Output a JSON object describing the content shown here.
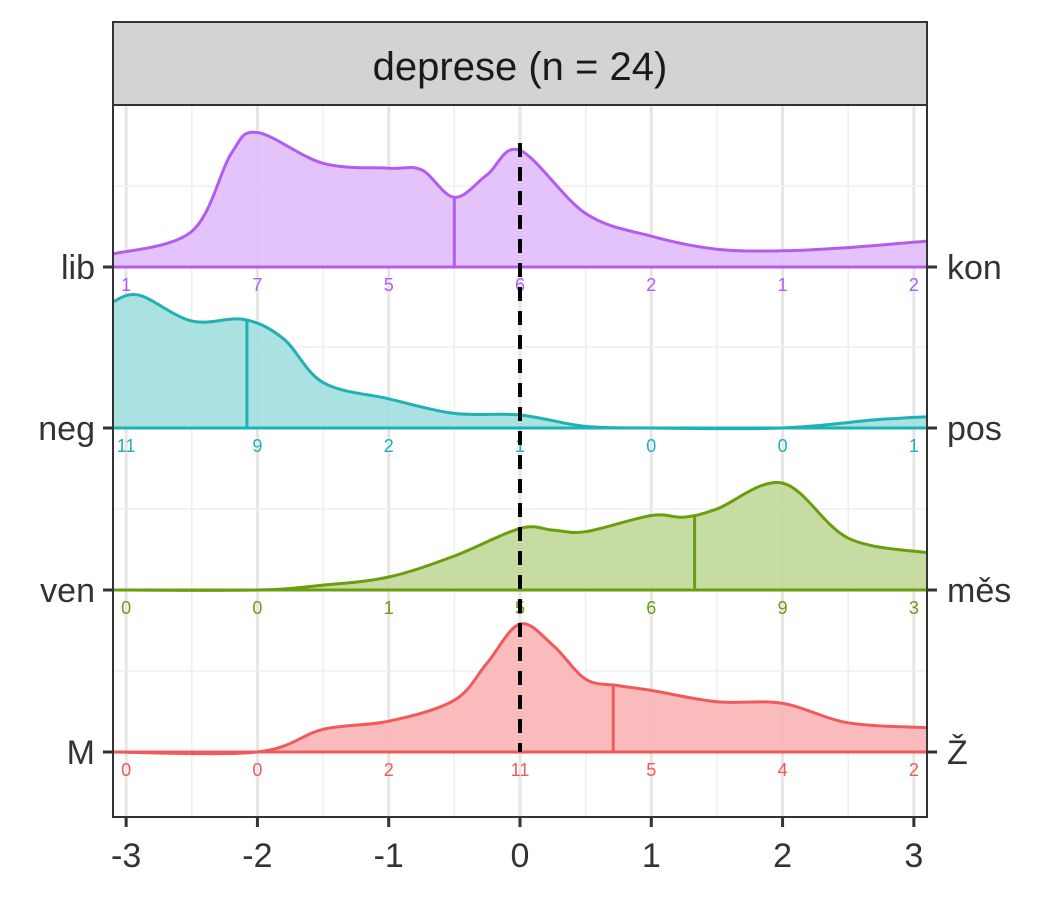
{
  "chart_data": {
    "type": "ridgeline-density",
    "title": "depRESE",
    "title_text": "deprese (n = 24)",
    "xlim": [
      -3.1,
      3.1
    ],
    "x_ticks": [
      -3,
      -2,
      -1,
      0,
      1,
      2,
      3
    ],
    "x_tick_labels": [
      "-3",
      "-2",
      "-1",
      "0",
      "1",
      "2",
      "3"
    ],
    "reference_line_x": 0,
    "grid": true,
    "count_positions": [
      -3,
      -2,
      -1,
      0,
      1,
      2,
      3
    ],
    "series": [
      {
        "left_label": "M",
        "right_label": "Ž",
        "color": "#F05A5A",
        "fill": "#F8B5B5",
        "mean": 0.71,
        "counts": [
          0,
          0,
          2,
          11,
          5,
          4,
          2
        ],
        "density": [
          [
            -3.1,
            0.0
          ],
          [
            -2.0,
            0.0
          ],
          [
            -1.5,
            0.14
          ],
          [
            -1.0,
            0.19
          ],
          [
            -0.5,
            0.32
          ],
          [
            -0.25,
            0.55
          ],
          [
            0.0,
            0.79
          ],
          [
            0.25,
            0.66
          ],
          [
            0.5,
            0.45
          ],
          [
            0.75,
            0.41
          ],
          [
            1.0,
            0.38
          ],
          [
            1.5,
            0.31
          ],
          [
            2.0,
            0.3
          ],
          [
            2.5,
            0.18
          ],
          [
            3.1,
            0.15
          ]
        ]
      },
      {
        "left_label": "ven",
        "right_label": "měs",
        "color": "#6A9E0F",
        "fill": "#C2D99B",
        "mean": 1.33,
        "counts": [
          0,
          0,
          1,
          5,
          6,
          9,
          3
        ],
        "density": [
          [
            -3.1,
            0.0
          ],
          [
            -2.0,
            0.0
          ],
          [
            -1.5,
            0.03
          ],
          [
            -1.0,
            0.08
          ],
          [
            -0.5,
            0.21
          ],
          [
            0.0,
            0.38
          ],
          [
            0.25,
            0.37
          ],
          [
            0.5,
            0.36
          ],
          [
            1.0,
            0.46
          ],
          [
            1.25,
            0.45
          ],
          [
            1.5,
            0.5
          ],
          [
            2.0,
            0.66
          ],
          [
            2.5,
            0.32
          ],
          [
            3.1,
            0.23
          ]
        ]
      },
      {
        "left_label": "neg",
        "right_label": "pos",
        "color": "#1FB1B4",
        "fill": "#A3E0E0",
        "mean": -2.08,
        "counts": [
          11,
          9,
          2,
          1,
          0,
          0,
          1
        ],
        "density": [
          [
            -3.1,
            0.78
          ],
          [
            -2.9,
            0.82
          ],
          [
            -2.5,
            0.66
          ],
          [
            -2.1,
            0.67
          ],
          [
            -1.8,
            0.55
          ],
          [
            -1.5,
            0.28
          ],
          [
            -1.0,
            0.18
          ],
          [
            -0.5,
            0.09
          ],
          [
            0.0,
            0.08
          ],
          [
            0.5,
            0.01
          ],
          [
            1.0,
            0.0
          ],
          [
            2.0,
            0.0
          ],
          [
            2.7,
            0.05
          ],
          [
            3.1,
            0.07
          ]
        ]
      },
      {
        "left_label": "lib",
        "right_label": "kon",
        "color": "#B35CF0",
        "fill": "#E2BEFA",
        "mean": -0.5,
        "counts": [
          1,
          7,
          5,
          6,
          2,
          1,
          2
        ],
        "density": [
          [
            -3.1,
            0.08
          ],
          [
            -2.5,
            0.22
          ],
          [
            -2.2,
            0.7
          ],
          [
            -2.0,
            0.83
          ],
          [
            -1.5,
            0.64
          ],
          [
            -1.0,
            0.61
          ],
          [
            -0.75,
            0.6
          ],
          [
            -0.5,
            0.43
          ],
          [
            -0.25,
            0.57
          ],
          [
            0.0,
            0.72
          ],
          [
            0.5,
            0.33
          ],
          [
            1.0,
            0.19
          ],
          [
            1.5,
            0.11
          ],
          [
            2.0,
            0.1
          ],
          [
            2.5,
            0.12
          ],
          [
            3.1,
            0.16
          ]
        ]
      }
    ]
  }
}
